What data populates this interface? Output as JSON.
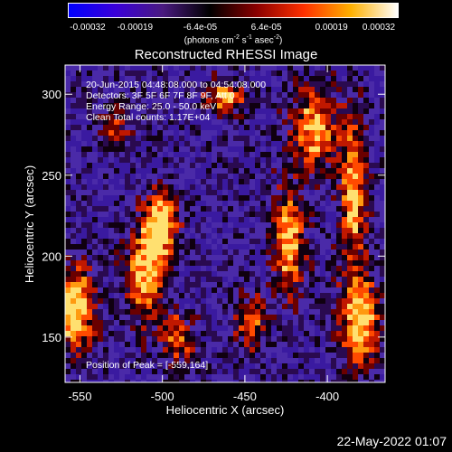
{
  "colorbar": {
    "ticks": [
      "-0.00032",
      "-0.00019",
      "-6.4e-05",
      "6.4e-05",
      "0.00019",
      "0.00032"
    ],
    "tick_values": [
      -0.00032,
      -0.00019,
      -6.4e-05,
      6.4e-05,
      0.00019,
      0.00032
    ],
    "unit_main": "(photons cm",
    "unit_exp1": "-2",
    "unit_mid": " s",
    "unit_exp2": "-1",
    "unit_end": " asec",
    "unit_exp3": "-2",
    "unit_close": ")",
    "colors": [
      "#0000ff",
      "#3a00d8",
      "#4a1a80",
      "#000000",
      "#8a0000",
      "#ff3000",
      "#ffb000",
      "#ffffff"
    ]
  },
  "chart_data": {
    "type": "heatmap",
    "title": "Reconstructed RHESSI Image",
    "xlabel": "Heliocentric X (arcsec)",
    "ylabel": "Heliocentric Y (arcsec)",
    "xlim": [
      -559,
      -365
    ],
    "ylim": [
      122,
      318
    ],
    "xticks": [
      -550,
      -500,
      -450,
      -400
    ],
    "yticks": [
      150,
      200,
      250,
      300
    ],
    "value_range": [
      -0.00032,
      0.00032
    ],
    "peak_position": [
      -559,
      164
    ]
  },
  "annotations": {
    "line1": "20-Jun-2015 04:48:08.000 to 04:54:08.000",
    "line2": "Detectors: 3F 5F 6F 7F 8F 9F, Att 0",
    "line3": "Energy Range: 25.0 - 50.0 keV",
    "line4": "Clean     Total counts: 1.17E+04",
    "peak": "Position of Peak = [-559,164]"
  },
  "footer": "22-May-2022 01:07"
}
